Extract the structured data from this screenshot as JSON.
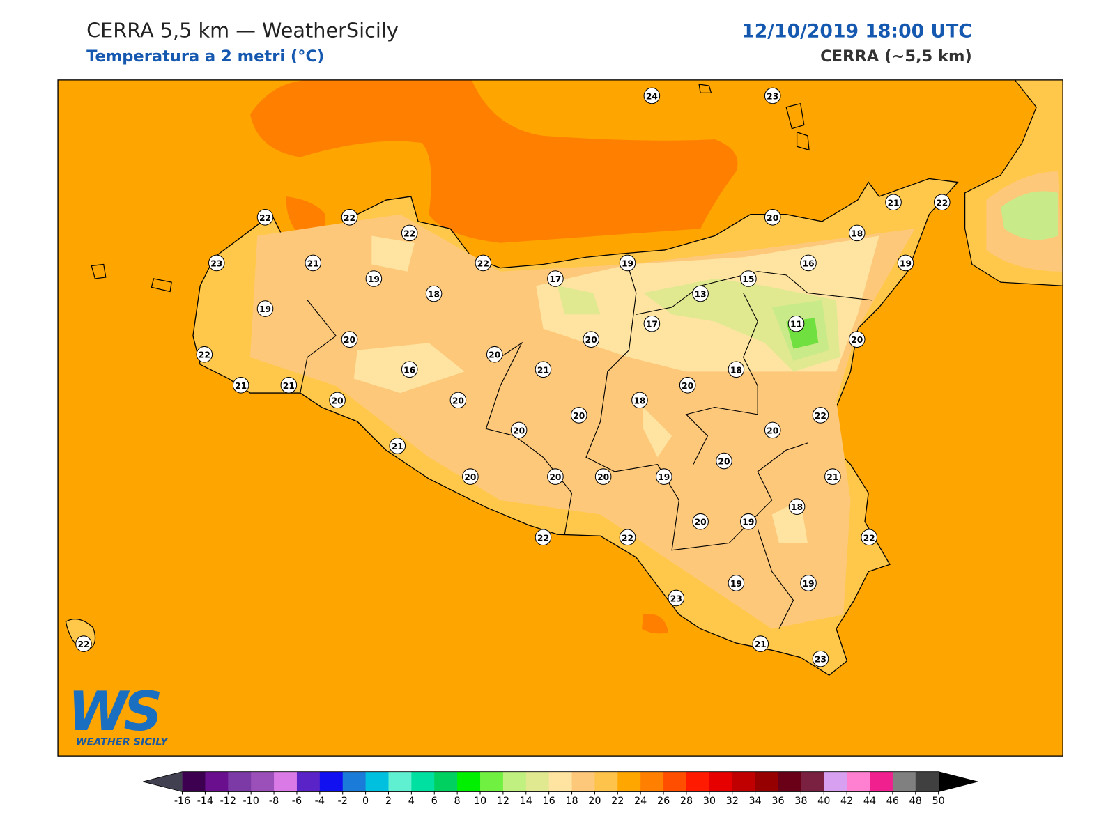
{
  "header": {
    "title": "CERRA 5,5 km — WeatherSicily",
    "subtitle": "Temperatura a 2 metri (°C)",
    "datetime": "12/10/2019 18:00 UTC",
    "model": "CERRA (~5,5 km)"
  },
  "stations": [
    24,
    23,
    22,
    22,
    22,
    20,
    21,
    22,
    18,
    23,
    21,
    19,
    18,
    22,
    17,
    19,
    15,
    16,
    19,
    13,
    19,
    20,
    17,
    11,
    20,
    20,
    20,
    22,
    16,
    21,
    18,
    20,
    21,
    21,
    20,
    20,
    18,
    20,
    22,
    20,
    20,
    21,
    20,
    20,
    20,
    20,
    19,
    21,
    18,
    20,
    19,
    22,
    22,
    22,
    23,
    19,
    19,
    22,
    21,
    23
  ],
  "logo": {
    "mark": "WS",
    "name": "WEATHER SICILY"
  },
  "colorbar": {
    "ticks": [
      -16,
      -14,
      -12,
      -10,
      -8,
      -6,
      -4,
      -2,
      0,
      2,
      4,
      6,
      8,
      10,
      12,
      14,
      16,
      18,
      20,
      22,
      24,
      26,
      28,
      30,
      32,
      34,
      36,
      38,
      40,
      42,
      44,
      46,
      48,
      50
    ],
    "colors": [
      "#3d0050",
      "#6a0f8e",
      "#7b3aa6",
      "#9b4fb8",
      "#d97ae6",
      "#5a23c8",
      "#1010f0",
      "#1b7bd8",
      "#00c0e0",
      "#5ef0d0",
      "#00e0a0",
      "#00d060",
      "#00f000",
      "#70f040",
      "#c0f080",
      "#e0e890",
      "#fee4a0",
      "#fdc87a",
      "#fec34a",
      "#ffa600",
      "#ff8000",
      "#ff4e00",
      "#ff1a00",
      "#e60000",
      "#c00000",
      "#960000",
      "#6a0018",
      "#7a2040",
      "#d8a0f0",
      "#ff80d0",
      "#f0208f",
      "#808080",
      "#404040"
    ],
    "under_color": "#404050",
    "over_color": "#000000"
  }
}
